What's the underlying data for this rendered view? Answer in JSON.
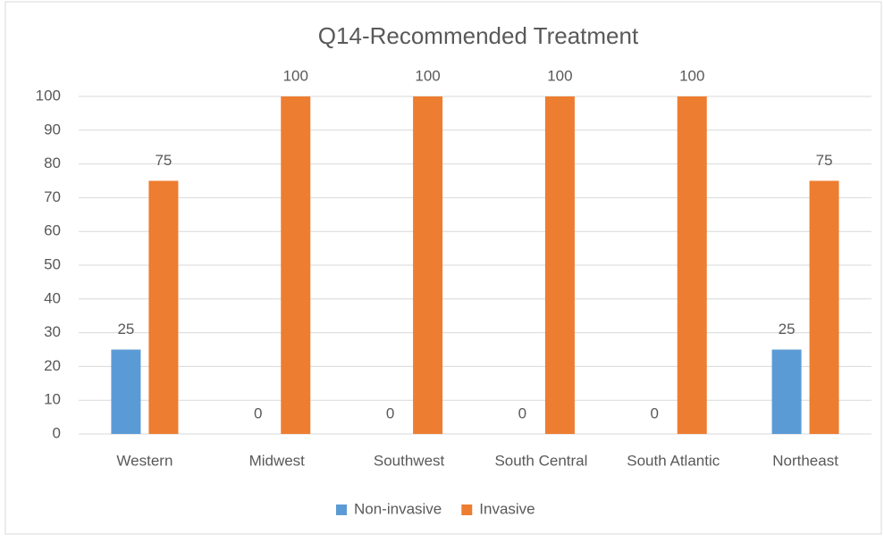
{
  "chart_data": {
    "type": "bar",
    "title": "Q14-Recommended Treatment",
    "categories": [
      "Western",
      "Midwest",
      "Southwest",
      "South Central",
      "South Atlantic",
      "Northeast"
    ],
    "series": [
      {
        "name": "Non-invasive",
        "color": "#5b9bd5",
        "values": [
          25,
          0,
          0,
          0,
          0,
          25
        ]
      },
      {
        "name": "Invasive",
        "color": "#ed7d31",
        "values": [
          75,
          100,
          100,
          100,
          100,
          75
        ]
      }
    ],
    "ylim": [
      0,
      100
    ],
    "yticks": [
      0,
      10,
      20,
      30,
      40,
      50,
      60,
      70,
      80,
      90,
      100
    ],
    "grid": true,
    "legend": "bottom"
  }
}
